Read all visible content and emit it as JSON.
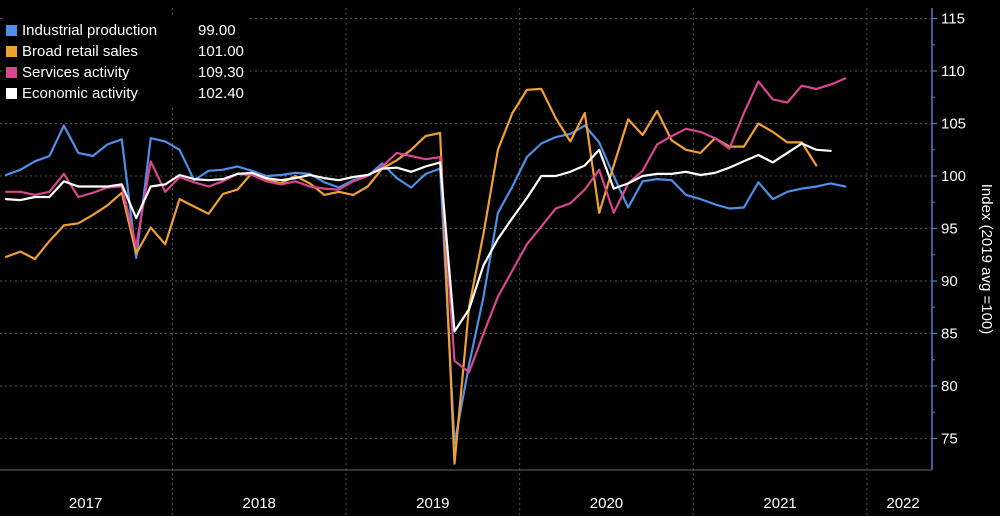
{
  "chart_data": {
    "type": "line",
    "title": "",
    "xlabel": "",
    "ylabel": "Index (2019 avg =100)",
    "ylim": [
      72,
      116
    ],
    "yticks": [
      75,
      80,
      85,
      90,
      95,
      100,
      105,
      110,
      115
    ],
    "grid": true,
    "legend_position": "top-left",
    "x_start": "2017-01",
    "x_end": "2022-05",
    "years": [
      "2017",
      "2018",
      "2019",
      "2020",
      "2021",
      "2022"
    ],
    "series": [
      {
        "name": "Industrial production",
        "last_value": "99.00",
        "color": "#4f8fe8",
        "values": [
          100.1,
          100.6,
          101.4,
          101.9,
          104.8,
          102.2,
          101.9,
          103.0,
          103.5,
          92.2,
          103.6,
          103.3,
          102.5,
          99.6,
          100.5,
          100.6,
          100.9,
          100.5,
          100.0,
          100.1,
          100.3,
          100.2,
          99.4,
          98.9,
          99.6,
          100.0,
          101.2,
          99.8,
          98.9,
          100.2,
          100.7,
          74.5,
          82.0,
          88.5,
          96.5,
          99.0,
          101.8,
          103.1,
          103.7,
          104.0,
          104.8,
          103.2,
          100.0,
          97.0,
          99.5,
          99.7,
          99.6,
          98.2,
          97.8,
          97.3,
          96.9,
          97.0,
          99.4,
          97.8,
          98.5,
          98.8,
          99.0,
          99.3,
          99.0
        ]
      },
      {
        "name": "Broad retail sales",
        "last_value": "101.00",
        "color": "#f0a030",
        "values": [
          92.3,
          92.8,
          92.1,
          93.8,
          95.3,
          95.5,
          96.3,
          97.2,
          98.4,
          92.6,
          95.1,
          93.5,
          97.8,
          97.1,
          96.4,
          98.3,
          98.7,
          100.3,
          99.7,
          99.3,
          100.0,
          99.3,
          98.2,
          98.5,
          98.2,
          99.0,
          100.7,
          101.5,
          102.5,
          103.8,
          104.1,
          72.6,
          87.5,
          94.5,
          102.5,
          106.0,
          108.2,
          108.3,
          105.5,
          103.3,
          106.0,
          96.5,
          101.0,
          105.4,
          103.9,
          106.2,
          103.4,
          102.5,
          102.2,
          103.6,
          102.8,
          102.8,
          105.0,
          104.2,
          103.2,
          103.2,
          101.0
        ]
      },
      {
        "name": "Services activity",
        "last_value": "109.30",
        "color": "#d8478e",
        "values": [
          98.5,
          98.5,
          98.2,
          98.5,
          100.2,
          98.0,
          98.4,
          98.9,
          99.0,
          93.3,
          101.4,
          98.5,
          99.9,
          99.4,
          99.0,
          99.5,
          100.2,
          100.1,
          99.5,
          99.2,
          99.5,
          99.0,
          98.8,
          98.7,
          99.5,
          100.0,
          100.9,
          102.2,
          101.9,
          101.6,
          101.8,
          82.4,
          81.3,
          85.0,
          88.5,
          91.0,
          93.5,
          95.2,
          96.9,
          97.4,
          98.7,
          100.6,
          96.5,
          99.3,
          100.5,
          103.0,
          103.8,
          104.5,
          104.2,
          103.6,
          102.6,
          106.0,
          109.0,
          107.3,
          107.0,
          108.6,
          108.3,
          108.7,
          109.3
        ]
      },
      {
        "name": "Economic activity",
        "last_value": "102.40",
        "color": "#ffffff",
        "values": [
          97.8,
          97.7,
          98.0,
          98.0,
          99.5,
          99.0,
          99.0,
          99.0,
          99.2,
          96.0,
          99.0,
          99.2,
          100.1,
          99.7,
          99.6,
          99.7,
          100.2,
          100.3,
          99.8,
          99.6,
          99.8,
          100.1,
          99.8,
          99.6,
          99.9,
          100.1,
          100.7,
          100.8,
          100.4,
          100.9,
          101.3,
          85.2,
          87.3,
          91.5,
          94.0,
          96.0,
          97.9,
          100.0,
          100.0,
          100.4,
          101.0,
          102.5,
          98.8,
          99.3,
          100.0,
          100.2,
          100.2,
          100.4,
          100.1,
          100.3,
          100.8,
          101.4,
          102.0,
          101.3,
          102.2,
          103.1,
          102.5,
          102.4
        ]
      }
    ]
  }
}
